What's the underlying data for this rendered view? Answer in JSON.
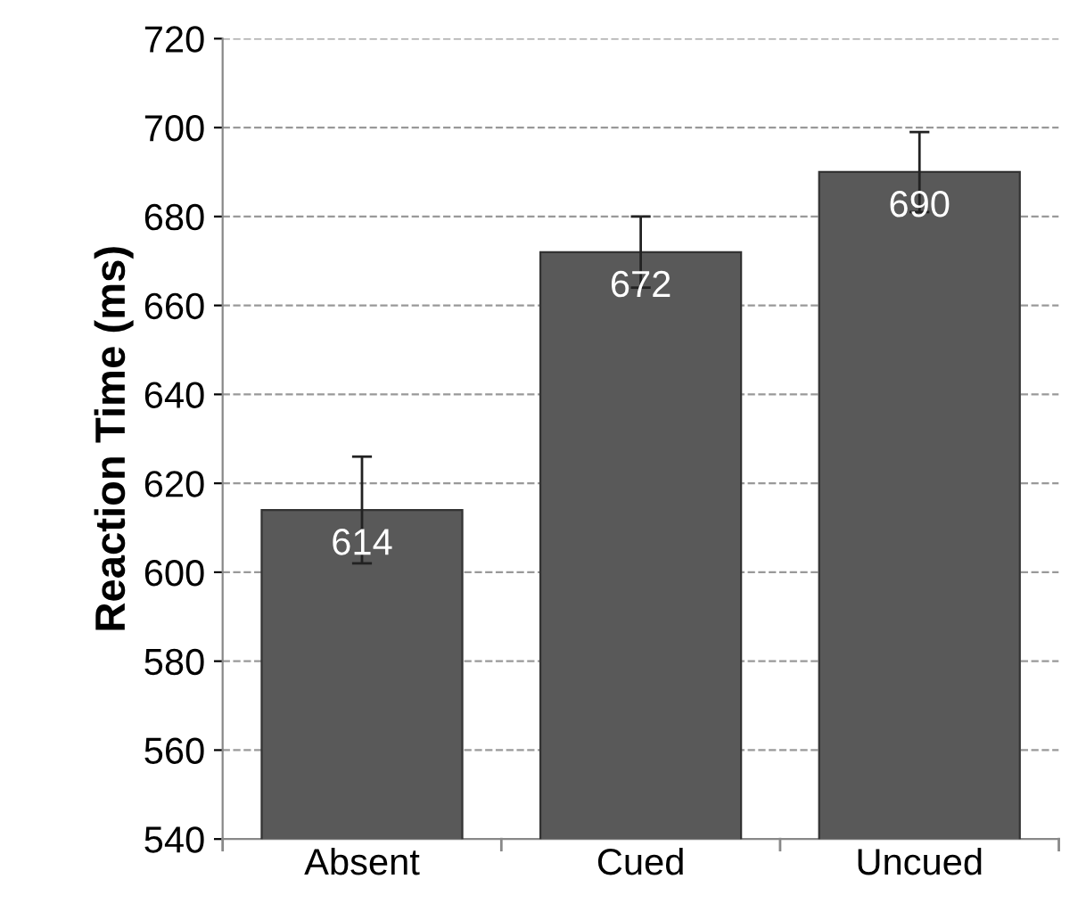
{
  "chart_data": {
    "type": "bar",
    "ylabel": "Reaction Time (ms)",
    "categories": [
      "Absent",
      "Cued",
      "Uncued"
    ],
    "values": [
      614,
      672,
      690
    ],
    "errors": [
      12,
      8,
      9
    ],
    "color": "#595959",
    "data_labels": true,
    "ylim": [
      540,
      720
    ],
    "yticks": [
      540,
      560,
      580,
      600,
      620,
      640,
      660,
      680,
      700,
      720
    ],
    "grid": "y",
    "line_style": "dashed"
  }
}
